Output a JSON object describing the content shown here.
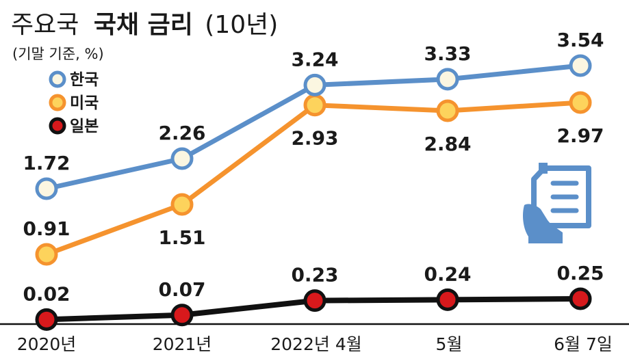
{
  "title": {
    "light": "주요국",
    "bold": "국채 금리",
    "paren": "(10년)"
  },
  "unit_note": "(기말 기준, %)",
  "colors": {
    "korea_line": "#5b8fc9",
    "korea_fill": "#fbf6e1",
    "us_line": "#f5932e",
    "us_fill": "#fdd35c",
    "japan_line": "#111111",
    "japan_fill": "#d7191c",
    "icon": "#5b8fc9",
    "text": "#1a1a1a"
  },
  "chart_data": {
    "type": "line",
    "title": "주요국 국채 금리(10년)",
    "ylabel": "(기말 기준, %)",
    "categories": [
      "2020년",
      "2021년",
      "2022년 4월",
      "5월",
      "6월 7일"
    ],
    "series": [
      {
        "name": "한국",
        "key": "korea",
        "values": [
          1.72,
          2.26,
          3.24,
          3.33,
          3.54
        ],
        "labels": [
          "1.72",
          "2.26",
          "3.24",
          "3.33",
          "3.54"
        ]
      },
      {
        "name": "미국",
        "key": "us",
        "values": [
          0.91,
          1.51,
          2.93,
          2.84,
          2.97
        ],
        "labels": [
          "0.91",
          "1.51",
          "2.93",
          "2.84",
          "2.97"
        ]
      },
      {
        "name": "일본",
        "key": "japan",
        "values": [
          0.02,
          0.07,
          0.23,
          0.24,
          0.25
        ],
        "labels": [
          "0.02",
          "0.07",
          "0.23",
          "0.24",
          "0.25"
        ]
      }
    ],
    "legend": [
      "한국",
      "미국",
      "일본"
    ],
    "legend_position": "top-left",
    "grid": false
  }
}
